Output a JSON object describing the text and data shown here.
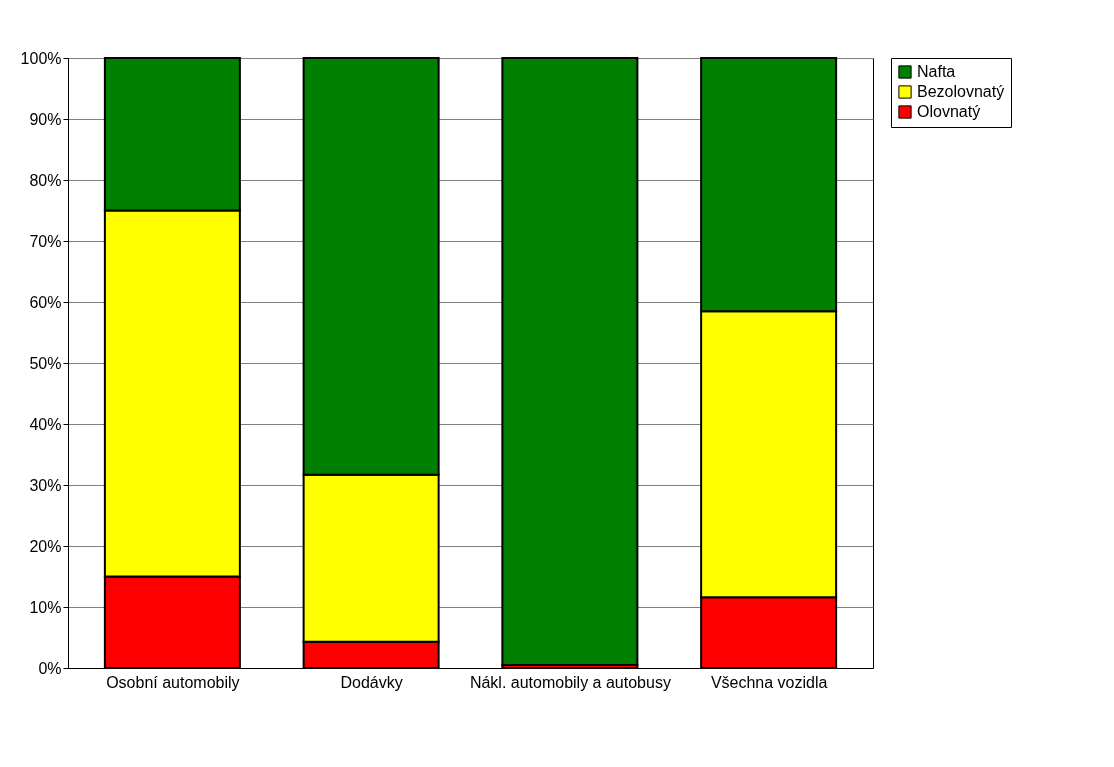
{
  "chart_data": {
    "type": "bar",
    "stacked": true,
    "categories": [
      "Osobní automobily",
      "Dodávky",
      "Nákl. automobily a\nautobusy",
      "Všechna vozidla"
    ],
    "series": [
      {
        "name": "Olovnatý",
        "color": "#ff0000",
        "values": [
          15,
          4.3,
          0.5,
          11.6
        ]
      },
      {
        "name": "Bezolovnatý",
        "color": "#ffff00",
        "values": [
          60,
          27.4,
          0,
          46.9
        ]
      },
      {
        "name": "Nafta",
        "color": "#008000",
        "values": [
          25,
          68.3,
          99.5,
          41.5
        ]
      }
    ],
    "ylim": [
      0,
      100
    ],
    "yticks": [
      {
        "value": 0,
        "label": "0%"
      },
      {
        "value": 10,
        "label": "10%"
      },
      {
        "value": 20,
        "label": "20%"
      },
      {
        "value": 30,
        "label": "30%"
      },
      {
        "value": 40,
        "label": "40%"
      },
      {
        "value": 50,
        "label": "50%"
      },
      {
        "value": 60,
        "label": "60%"
      },
      {
        "value": 70,
        "label": "70%"
      },
      {
        "value": 80,
        "label": "80%"
      },
      {
        "value": 90,
        "label": "90%"
      },
      {
        "value": 100,
        "label": "100%"
      }
    ],
    "grid": "y",
    "legend": "right"
  }
}
